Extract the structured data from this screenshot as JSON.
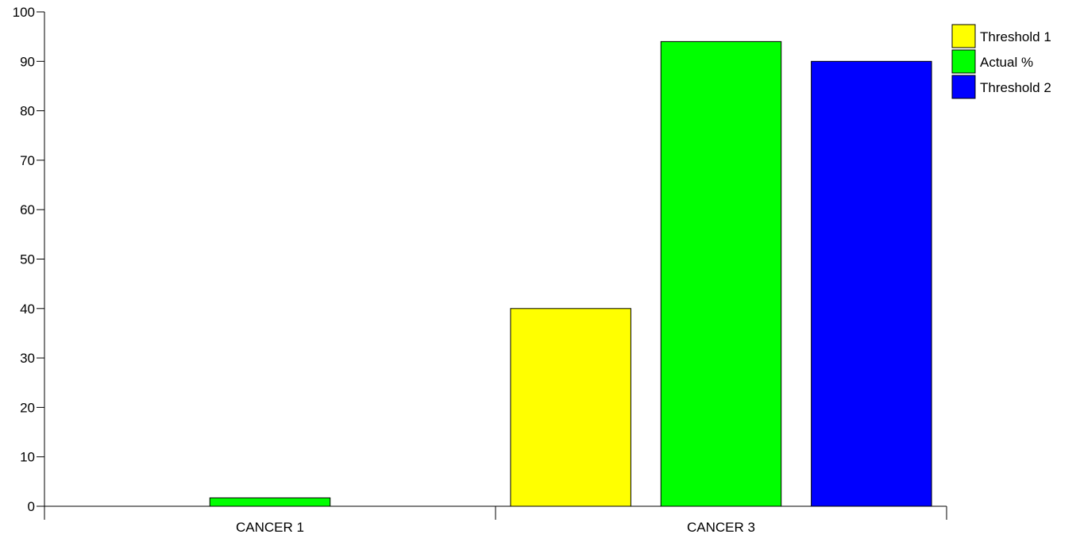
{
  "chart_data": {
    "type": "bar",
    "categories": [
      "CANCER 1",
      "CANCER 3"
    ],
    "series": [
      {
        "name": "Threshold 1",
        "color": "#ffff00",
        "values": [
          null,
          40
        ]
      },
      {
        "name": "Actual %",
        "color": "#00ff00",
        "values": [
          1.7,
          94
        ]
      },
      {
        "name": "Threshold 2",
        "color": "#0000ff",
        "values": [
          null,
          90
        ]
      }
    ],
    "ylim": [
      0,
      100
    ],
    "yticks": [
      0,
      10,
      20,
      30,
      40,
      50,
      60,
      70,
      80,
      90,
      100
    ],
    "title": "",
    "xlabel": "",
    "ylabel": "",
    "grid": false,
    "legend_position": "top-right"
  }
}
